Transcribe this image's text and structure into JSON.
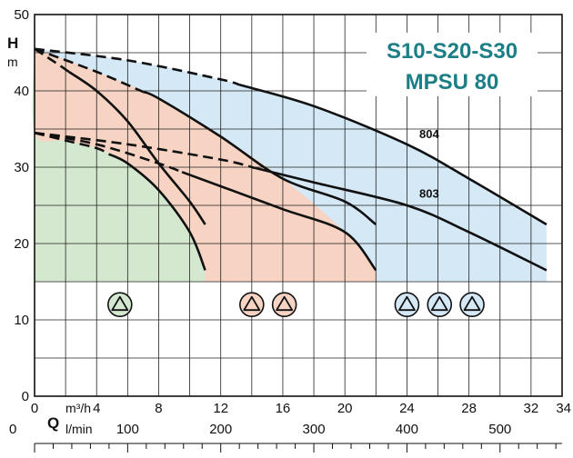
{
  "chart_data": {
    "type": "line",
    "title": [
      "S10-S20-S30",
      "MPSU 80"
    ],
    "colors": {
      "title": "#1d7f86",
      "zone_green": "#d4e8d0",
      "zone_salmon": "#f6d3c2",
      "zone_blue": "#d4e8f6",
      "grid": "#222222",
      "curve": "#111111"
    },
    "y_axis": {
      "letter": "H",
      "unit": "m",
      "ylim": [
        0,
        50
      ],
      "ticks": [
        0,
        10,
        20,
        30,
        40,
        50
      ]
    },
    "x_axis": {
      "letter": "Q",
      "unit_m3h": "m³/h",
      "unit_lmin": "l/min",
      "xlim": [
        0,
        34
      ],
      "ticks_m3h": [
        0,
        4,
        8,
        12,
        16,
        20,
        24,
        28,
        32,
        34
      ],
      "ticks_lmin": [
        0,
        100,
        200,
        300,
        400,
        500
      ],
      "lmin_per_m3h": 16.6667
    },
    "grid": true,
    "zones": [
      {
        "stages": 1,
        "x_max": 11.0,
        "y_min": 15,
        "points": [
          [
            0,
            45.5
          ],
          [
            0,
            34.5
          ],
          [
            2,
            33.5
          ],
          [
            4,
            32.5
          ],
          [
            6,
            30.5
          ],
          [
            8,
            27
          ],
          [
            10,
            21.5
          ],
          [
            11,
            16.5
          ]
        ]
      },
      {
        "stages": 2,
        "x_max": 22.0,
        "y_min": 15,
        "points": [
          [
            0,
            45.5
          ],
          [
            4,
            42.5
          ],
          [
            8,
            39
          ],
          [
            12,
            34
          ],
          [
            16,
            28.5
          ],
          [
            20,
            21.5
          ],
          [
            22,
            16.5
          ]
        ]
      },
      {
        "stages": 3,
        "x_max": 33.0,
        "y_min": 15,
        "points": [
          [
            0,
            45.5
          ],
          [
            6,
            44
          ],
          [
            12,
            41.5
          ],
          [
            18,
            38
          ],
          [
            24,
            33
          ],
          [
            28,
            28.5
          ],
          [
            33,
            22.5
          ]
        ]
      }
    ],
    "series": [
      {
        "stages": 1,
        "model": "804",
        "points": [
          [
            0,
            45.5
          ],
          [
            1.5,
            43.5
          ],
          [
            4,
            40
          ],
          [
            6,
            36
          ],
          [
            8,
            30.5
          ],
          [
            10,
            25.5
          ],
          [
            11,
            22.5
          ]
        ],
        "dashed_to": 2.2
      },
      {
        "stages": 1,
        "model": "803",
        "points": [
          [
            0,
            34.5
          ],
          [
            2,
            33.5
          ],
          [
            4,
            32.5
          ],
          [
            6,
            30.5
          ],
          [
            8,
            27
          ],
          [
            10,
            21.5
          ],
          [
            11,
            16.5
          ]
        ],
        "dashed_to": 4.8
      },
      {
        "stages": 2,
        "model": "804",
        "points": [
          [
            0,
            45.5
          ],
          [
            4,
            42.5
          ],
          [
            8,
            39
          ],
          [
            12,
            34
          ],
          [
            16,
            28.5
          ],
          [
            20,
            25.5
          ],
          [
            22,
            22.5
          ]
        ],
        "dashed_to": 7.0
      },
      {
        "stages": 2,
        "model": "803",
        "points": [
          [
            0,
            34.5
          ],
          [
            4,
            33
          ],
          [
            8,
            30.5
          ],
          [
            12,
            27.5
          ],
          [
            16,
            24.5
          ],
          [
            20,
            21.5
          ],
          [
            22,
            16.5
          ]
        ],
        "dashed_to": 9.5
      },
      {
        "stages": 3,
        "model": "804",
        "points": [
          [
            0,
            45.5
          ],
          [
            6,
            44
          ],
          [
            12,
            41.5
          ],
          [
            18,
            38
          ],
          [
            24,
            33
          ],
          [
            28,
            28.5
          ],
          [
            33,
            22.5
          ]
        ],
        "dashed_to": 13.2,
        "label": "804",
        "label_at": [
          24.8,
          33.8
        ]
      },
      {
        "stages": 3,
        "model": "803",
        "points": [
          [
            0,
            34.5
          ],
          [
            6,
            33
          ],
          [
            12,
            31
          ],
          [
            18,
            28
          ],
          [
            24,
            25
          ],
          [
            28,
            21.5
          ],
          [
            33,
            16.5
          ]
        ],
        "dashed_to": 14.2,
        "label": "803",
        "label_at": [
          24.8,
          26.0
        ]
      }
    ],
    "stage_markers": [
      {
        "stages": 1,
        "x": [
          5.5
        ],
        "y": 12
      },
      {
        "stages": 2,
        "x": [
          14.0,
          16.1
        ],
        "y": 12
      },
      {
        "stages": 3,
        "x": [
          24.0,
          26.1,
          28.2
        ],
        "y": 12
      }
    ]
  }
}
